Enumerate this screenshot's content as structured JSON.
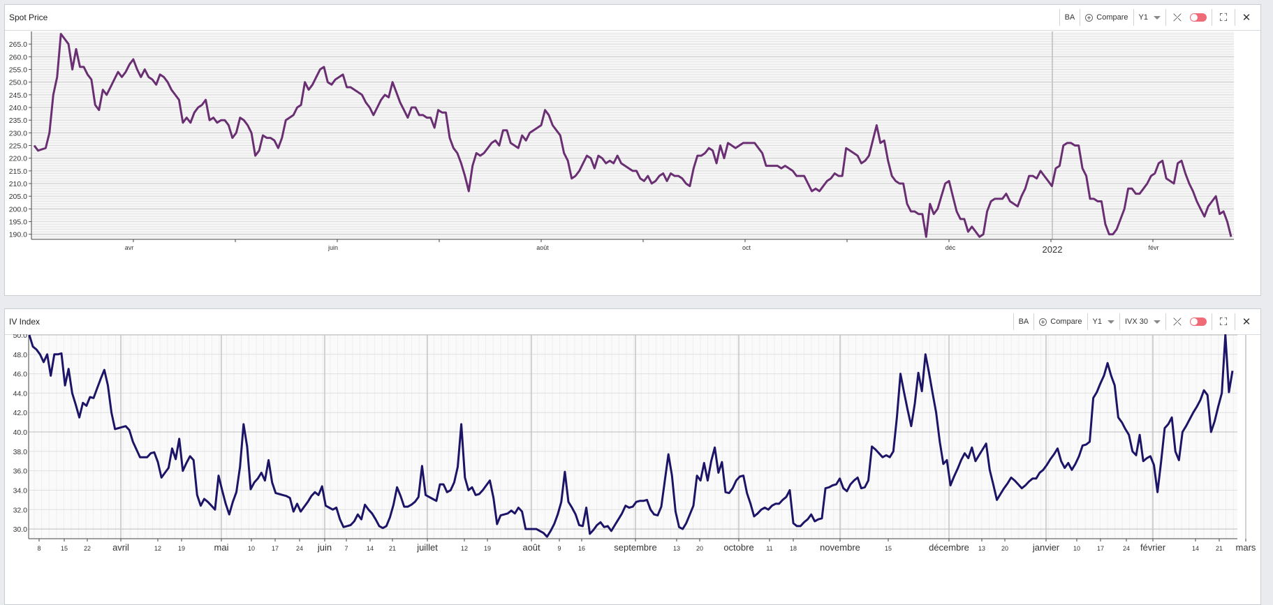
{
  "panels": {
    "spot": {
      "title": "Spot Price",
      "ticker": "BA",
      "compare_label": "Compare",
      "period_label": "Y1"
    },
    "iv": {
      "title": "IV Index",
      "ticker": "BA",
      "compare_label": "Compare",
      "period_label": "Y1",
      "measure_label": "IVX 30"
    }
  },
  "colors": {
    "spot_line": "#6a2f72",
    "iv_line": "#1c1466",
    "toggle": "#f06b78"
  },
  "icons": [
    "plus-circle-icon",
    "chevron-down-icon",
    "no-sync-icon",
    "toggle-switch-icon",
    "fullscreen-icon",
    "close-icon"
  ],
  "chart_data": [
    {
      "type": "line",
      "title": "Spot Price",
      "ylim": [
        188,
        270
      ],
      "yticks": [
        "190.0",
        "195.0",
        "200.0",
        "205.0",
        "210.0",
        "215.0",
        "220.0",
        "225.0",
        "230.0",
        "235.0",
        "240.0",
        "245.0",
        "250.0",
        "255.0",
        "260.0",
        "265.0"
      ],
      "xticks": [
        "avr",
        "juin",
        "août",
        "oct",
        "déc",
        "2022",
        "févr"
      ],
      "grid": true,
      "series": [
        {
          "values": [
            225,
            223,
            223.5,
            224,
            230,
            245,
            252,
            269,
            267,
            265,
            255,
            263,
            256,
            256,
            253,
            251,
            241,
            239,
            247,
            245,
            248,
            251,
            254,
            252,
            254,
            257,
            259,
            255,
            252,
            255,
            252,
            251,
            249,
            253,
            252,
            250,
            247,
            245,
            243,
            234,
            236,
            234,
            238,
            240,
            241,
            243,
            235,
            236,
            234,
            235,
            235,
            233,
            228,
            230,
            236,
            235,
            233,
            230,
            221,
            223,
            229,
            228,
            228,
            227,
            224,
            228,
            235,
            236,
            237,
            240,
            241,
            250,
            247,
            249,
            252,
            255,
            256,
            250,
            249,
            251,
            252,
            253,
            248,
            248,
            247,
            246,
            245,
            242,
            240,
            237,
            240,
            243,
            245,
            244,
            250,
            246,
            242,
            239,
            236,
            240,
            240,
            237,
            237,
            236,
            236,
            232,
            239,
            238,
            238,
            228,
            224,
            222,
            218,
            213,
            207,
            217,
            222,
            221,
            222,
            224,
            226,
            227,
            225,
            231,
            231,
            226,
            225,
            224,
            229,
            227,
            230,
            231,
            232,
            233,
            239,
            237,
            233,
            231,
            229,
            222,
            219,
            212,
            213,
            215,
            218,
            221,
            220,
            216,
            221,
            220,
            218,
            219,
            218,
            221,
            218,
            217,
            216,
            215,
            215,
            212,
            211,
            213,
            210,
            211,
            213,
            214,
            211,
            214,
            213,
            213,
            212,
            210,
            209,
            216,
            221,
            221,
            222,
            224,
            223,
            218,
            225,
            220,
            226,
            225,
            224,
            225,
            226,
            226,
            226,
            226,
            224,
            222,
            217,
            217,
            217,
            217,
            216,
            217,
            216,
            215,
            213,
            213,
            213,
            210,
            207,
            208,
            207,
            209,
            211,
            212,
            214,
            213,
            213,
            224,
            223,
            222,
            221,
            218,
            219,
            221,
            227,
            233,
            226,
            227,
            219,
            213,
            211,
            210,
            210,
            202,
            199,
            199,
            198,
            198,
            189,
            202,
            198,
            200,
            205,
            210,
            211,
            205,
            199,
            196,
            196,
            191,
            193,
            191,
            189,
            190,
            199,
            203,
            204,
            204,
            204,
            206,
            203,
            202,
            201,
            205,
            208,
            213,
            213,
            212,
            215,
            213,
            211,
            209,
            216,
            217,
            225,
            226,
            226,
            225,
            225,
            216,
            213,
            204,
            204,
            203,
            203,
            194,
            190,
            190,
            192,
            196,
            200,
            208,
            208,
            206,
            206,
            208,
            210,
            213,
            214,
            218,
            219,
            212,
            211,
            210,
            218,
            219,
            214,
            210,
            207,
            203,
            200,
            197,
            201,
            203,
            205,
            198,
            199,
            195,
            189
          ]
        }
      ]
    },
    {
      "type": "line",
      "title": "IV Index",
      "ylim": [
        29,
        50
      ],
      "yticks": [
        "30.0",
        "32.0",
        "34.0",
        "36.0",
        "38.0",
        "40.0",
        "42.0",
        "44.0",
        "46.0",
        "48.0",
        "50.0"
      ],
      "xticks": [
        "8",
        "15",
        "22",
        "avril",
        "12",
        "19",
        "mai",
        "10",
        "17",
        "24",
        "juin",
        "7",
        "14",
        "21",
        "juillet",
        "12",
        "19",
        "août",
        "9",
        "16",
        "septembre",
        "13",
        "20",
        "octobre",
        "11",
        "18",
        "novembre",
        "15",
        "décembre",
        "13",
        "20",
        "janvier",
        "10",
        "17",
        "24",
        "février",
        "14",
        "21",
        "mars"
      ],
      "grid": true,
      "series": [
        {
          "values": [
            50,
            48.8,
            48.5,
            48,
            47.2,
            48,
            45.8,
            48,
            48,
            48.1,
            44.8,
            46.5,
            44,
            42.8,
            41.5,
            43,
            42.7,
            43.6,
            43.5,
            44.5,
            45.5,
            46.4,
            44.8,
            42,
            40.3,
            40.4,
            40.5,
            40.6,
            40.2,
            39,
            38.2,
            37.4,
            37.4,
            37.4,
            37.8,
            37.9,
            36.9,
            35.3,
            35.8,
            36.3,
            38.3,
            37.2,
            39.3,
            36,
            36.8,
            37.5,
            37.1,
            33.5,
            32.4,
            33.1,
            32.8,
            32.4,
            32,
            35.5,
            34,
            32.6,
            31.5,
            32.8,
            33.8,
            36.4,
            40.8,
            38.5,
            34.1,
            34.8,
            35.2,
            35.8,
            35,
            37.1,
            34.8,
            33.7,
            33.6,
            33.5,
            33.4,
            33.2,
            31.8,
            32.6,
            31.8,
            32.3,
            32.8,
            33.4,
            33.8,
            33.5,
            34.4,
            32.4,
            32.2,
            32,
            32.2,
            31,
            30.2,
            30.3,
            30.4,
            30.8,
            31.5,
            31,
            32.5,
            32,
            31.6,
            31,
            30.3,
            30.1,
            30.3,
            31.2,
            32.5,
            34.3,
            33.4,
            32.3,
            32.3,
            32.5,
            32.8,
            33.3,
            36.5,
            33.5,
            33.3,
            33.1,
            32.9,
            34.6,
            34.6,
            33.8,
            34,
            34.8,
            36.4,
            40.8,
            35.3,
            34,
            34.3,
            33.5,
            33.6,
            34,
            34.5,
            35,
            33.2,
            30.5,
            31.4,
            31.5,
            31.6,
            31.9,
            31.6,
            32.2,
            31.8,
            30,
            30,
            30,
            30,
            29.8,
            29.6,
            29.2,
            29.8,
            30.5,
            31.5,
            32.8,
            35.9,
            32.8,
            32.2,
            31.5,
            30.4,
            30.3,
            32.2,
            29.5,
            29.9,
            30.4,
            30.7,
            30.2,
            30.3,
            29.8,
            30.4,
            31,
            31.6,
            32.4,
            32.2,
            32.3,
            32.8,
            32.9,
            32.9,
            33,
            32,
            31.5,
            31.4,
            32.3,
            35,
            37.7,
            35.5,
            31.8,
            30.2,
            30,
            30.6,
            31.5,
            32.4,
            35.5,
            35,
            36.8,
            35,
            37,
            38.4,
            35.8,
            36.9,
            33.8,
            33.7,
            34.2,
            35,
            35.4,
            35.5,
            33.7,
            32.6,
            31.3,
            31.6,
            32,
            32.2,
            32,
            32.4,
            32.6,
            32.6,
            33,
            33.3,
            34,
            30.6,
            30.3,
            30.3,
            30.7,
            31,
            31.5,
            30.8,
            31,
            31.1,
            34.2,
            34.3,
            34.5,
            34.6,
            35.2,
            34.2,
            33.9,
            34.6,
            35,
            35.3,
            34.2,
            34.3,
            35,
            38.5,
            38.2,
            37.8,
            37.4,
            37.6,
            37.4,
            38,
            41.5,
            46,
            44.1,
            42.3,
            40.6,
            42.9,
            46.1,
            44.2,
            48,
            46.1,
            44,
            42,
            39,
            36.7,
            37.1,
            34.5,
            35.4,
            36.2,
            37.1,
            37.8,
            37.3,
            38.4,
            37,
            37.6,
            38.2,
            38.8,
            36.1,
            34.6,
            33,
            33.6,
            34.2,
            34.7,
            35.3,
            35,
            34.6,
            34.2,
            34.5,
            34.9,
            35.2,
            35.2,
            35.8,
            36.1,
            36.6,
            37.2,
            37.7,
            38.3,
            37,
            36.3,
            36.8,
            36.1,
            36.7,
            37.5,
            38.6,
            38.7,
            39,
            43.5,
            44.1,
            45,
            45.8,
            47.1,
            45.8,
            44.8,
            41.5,
            41,
            40.3,
            39.7,
            38,
            37.6,
            39.7,
            37,
            37.3,
            37.5,
            36.6,
            33.8,
            36.9,
            40.4,
            40.8,
            41.5,
            38,
            37.1,
            40,
            40.6,
            41.3,
            42,
            42.6,
            43.3,
            44.3,
            43.8,
            40,
            41.1,
            42.6,
            44,
            50,
            44.1,
            46.3
          ]
        }
      ]
    }
  ]
}
